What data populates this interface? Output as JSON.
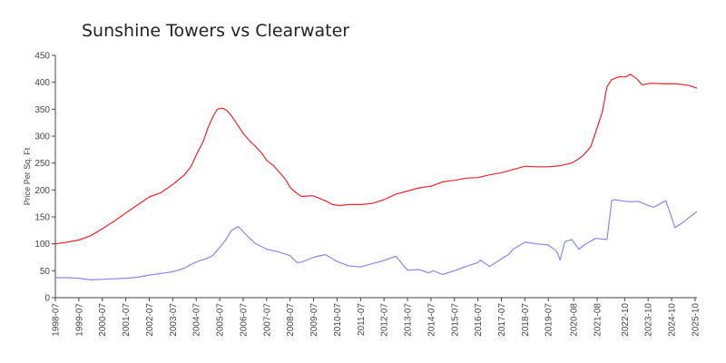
{
  "chart_data": {
    "type": "line",
    "title": "Sunshine Towers vs Clearwater",
    "xlabel": "",
    "ylabel": "Price Per Sq. Ft",
    "ylim": [
      0,
      450
    ],
    "yticks": [
      0,
      50,
      100,
      150,
      200,
      250,
      300,
      350,
      400,
      450
    ],
    "xlim": [
      1998.5,
      2025.83
    ],
    "x_tick_labels": [
      "1998-07",
      "1999-07",
      "2000-07",
      "2001-07",
      "2002-07",
      "2003-07",
      "2004-07",
      "2005-07",
      "2006-07",
      "2007-07",
      "2008-07",
      "2009-07",
      "2010-07",
      "2011-07",
      "2012-07",
      "2013-07",
      "2014-07",
      "2015-07",
      "2016-07",
      "2017-07",
      "2018-07",
      "2019-07",
      "2020-08",
      "2021-08",
      "2022-10",
      "2023-10",
      "2024-10",
      "2025-10"
    ],
    "x_tick_positions": [
      1998.5,
      1999.5,
      2000.5,
      2001.5,
      2002.5,
      2003.5,
      2004.5,
      2005.5,
      2006.5,
      2007.5,
      2008.5,
      2009.5,
      2010.5,
      2011.5,
      2012.5,
      2013.5,
      2014.5,
      2015.5,
      2016.5,
      2017.5,
      2018.5,
      2019.5,
      2020.58,
      2021.58,
      2022.75,
      2023.75,
      2024.75,
      2025.75
    ],
    "grid": false,
    "series": [
      {
        "name": "Sunshine Towers",
        "color": "#e8262a",
        "x": [
          1998.5,
          1999.0,
          1999.5,
          2000.0,
          2000.5,
          2001.0,
          2001.5,
          2002.0,
          2002.5,
          2003.0,
          2003.5,
          2004.0,
          2004.3,
          2004.5,
          2004.8,
          2005.0,
          2005.2,
          2005.4,
          2005.6,
          2005.8,
          2006.0,
          2006.2,
          2006.5,
          2006.8,
          2007.0,
          2007.3,
          2007.5,
          2007.8,
          2008.0,
          2008.3,
          2008.5,
          2008.8,
          2009.0,
          2009.3,
          2009.5,
          2010.0,
          2010.3,
          2010.6,
          2011.0,
          2011.5,
          2012.0,
          2012.5,
          2013.0,
          2013.5,
          2014.0,
          2014.5,
          2015.0,
          2015.5,
          2016.0,
          2016.5,
          2017.0,
          2017.5,
          2018.0,
          2018.5,
          2019.0,
          2019.5,
          2020.0,
          2020.5,
          2020.8,
          2021.0,
          2021.3,
          2021.5,
          2021.8,
          2022.0,
          2022.2,
          2022.5,
          2022.8,
          2023.0,
          2023.3,
          2023.5,
          2023.8,
          2024.0,
          2024.5,
          2025.0,
          2025.5,
          2025.83
        ],
        "values": [
          100,
          103,
          107,
          115,
          128,
          142,
          157,
          172,
          187,
          195,
          210,
          228,
          245,
          265,
          290,
          315,
          335,
          350,
          352,
          348,
          338,
          325,
          305,
          290,
          282,
          268,
          255,
          245,
          235,
          220,
          205,
          193,
          188,
          189,
          189,
          180,
          173,
          171,
          173,
          173,
          175,
          182,
          192,
          198,
          204,
          207,
          215,
          218,
          222,
          223,
          228,
          232,
          238,
          244,
          243,
          243,
          245,
          250,
          258,
          265,
          280,
          305,
          345,
          392,
          405,
          410,
          410,
          415,
          405,
          395,
          398,
          398,
          397,
          397,
          394,
          389
        ]
      },
      {
        "name": "Clearwater",
        "color": "#8888ee",
        "x": [
          1998.5,
          1999.0,
          1999.5,
          2000.0,
          2000.5,
          2001.0,
          2001.5,
          2002.0,
          2002.5,
          2003.0,
          2003.5,
          2004.0,
          2004.3,
          2004.6,
          2004.9,
          2005.2,
          2005.5,
          2005.8,
          2006.0,
          2006.3,
          2006.6,
          2007.0,
          2007.5,
          2008.0,
          2008.5,
          2008.8,
          2009.0,
          2009.5,
          2010.0,
          2010.5,
          2011.0,
          2011.5,
          2012.0,
          2012.5,
          2013.0,
          2013.5,
          2014.0,
          2014.4,
          2014.6,
          2015.0,
          2015.5,
          2016.0,
          2016.5,
          2016.6,
          2017.0,
          2017.5,
          2017.8,
          2018.0,
          2018.5,
          2019.0,
          2019.5,
          2019.8,
          2019.9,
          2020.0,
          2020.2,
          2020.5,
          2020.8,
          2021.0,
          2021.5,
          2022.0,
          2022.2,
          2022.3,
          2022.6,
          2022.8,
          2023.0,
          2023.3,
          2023.5,
          2023.7,
          2024.0,
          2024.5,
          2024.7,
          2024.9,
          2025.3,
          2025.83
        ],
        "values": [
          37,
          37,
          36,
          33,
          34,
          35,
          36,
          38,
          42,
          45,
          48,
          55,
          62,
          68,
          72,
          78,
          93,
          110,
          125,
          132,
          118,
          101,
          90,
          85,
          78,
          65,
          66,
          75,
          80,
          67,
          59,
          57,
          63,
          69,
          77,
          51,
          52,
          46,
          50,
          43,
          50,
          58,
          65,
          70,
          58,
          72,
          80,
          90,
          103,
          100,
          98,
          88,
          82,
          70,
          104,
          108,
          90,
          97,
          110,
          108,
          180,
          182,
          180,
          179,
          178,
          179,
          176,
          172,
          168,
          180,
          155,
          130,
          142,
          160
        ]
      }
    ]
  }
}
